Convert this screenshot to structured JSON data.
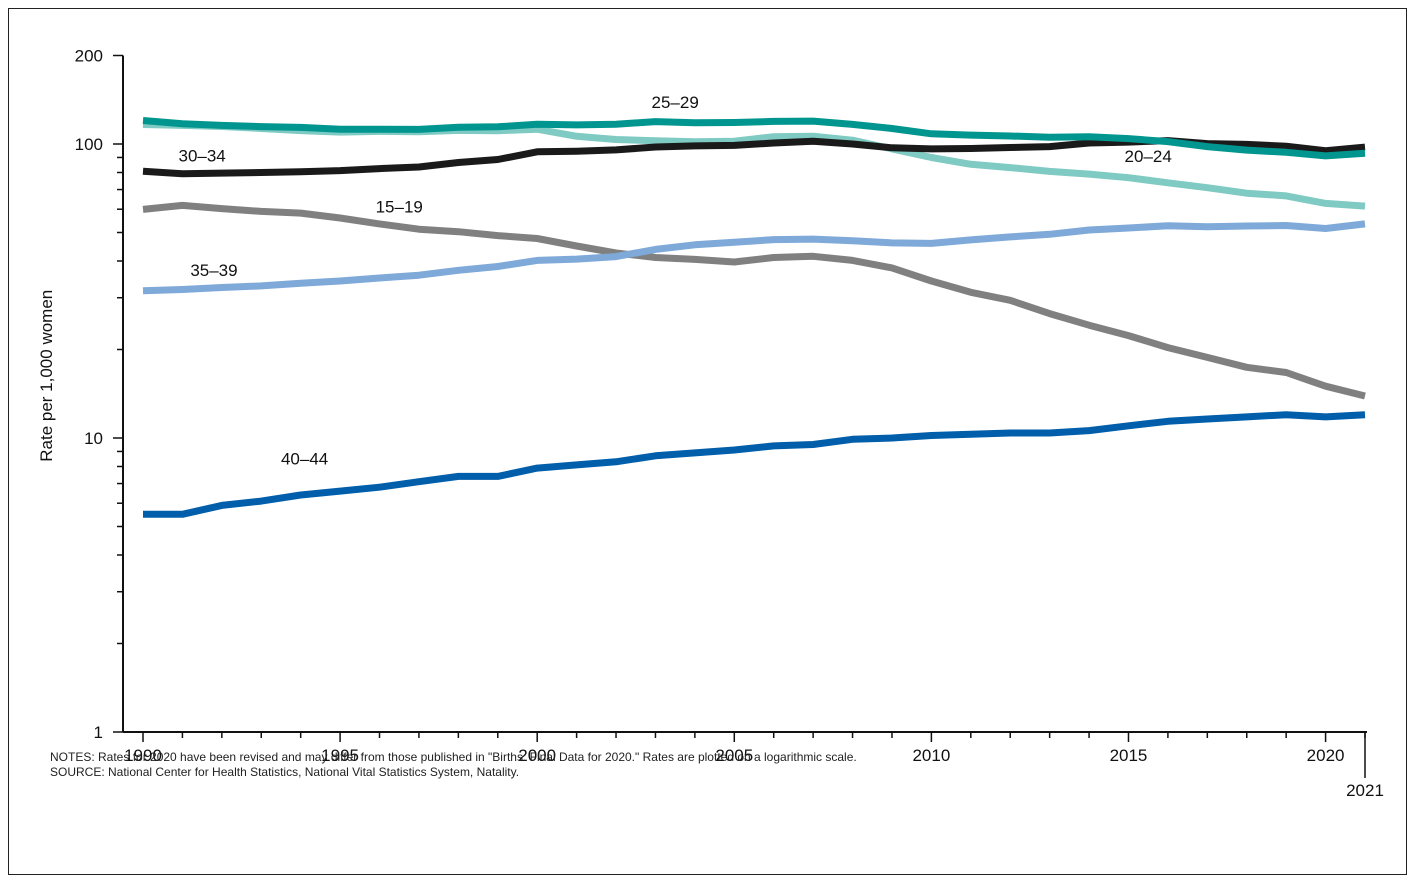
{
  "chart_data": {
    "type": "line",
    "y_scale": "log",
    "ylabel": "Rate per 1,000 women",
    "xlabel": "",
    "ylim": [
      1,
      200
    ],
    "xlim": [
      1990,
      2021
    ],
    "y_ticks": [
      1,
      10,
      100,
      200
    ],
    "x_ticks": [
      1990,
      1995,
      2000,
      2005,
      2010,
      2015,
      2020
    ],
    "x_tick_labels": [
      "1990",
      "1995",
      "2000",
      "2005",
      "2010",
      "2015",
      "2020"
    ],
    "x_extra_tick": {
      "value": 2021,
      "label": "2021"
    },
    "grid": false,
    "x": [
      1990,
      1991,
      1992,
      1993,
      1994,
      1995,
      1996,
      1997,
      1998,
      1999,
      2000,
      2001,
      2002,
      2003,
      2004,
      2005,
      2006,
      2007,
      2008,
      2009,
      2010,
      2011,
      2012,
      2013,
      2014,
      2015,
      2016,
      2017,
      2018,
      2019,
      2020,
      2021
    ],
    "series": [
      {
        "name": "15–19",
        "color": "#808080",
        "values": [
          59.9,
          61.8,
          60.3,
          59.0,
          58.2,
          56.0,
          53.5,
          51.3,
          50.3,
          48.8,
          47.7,
          45.0,
          42.6,
          41.1,
          40.5,
          39.7,
          41.1,
          41.5,
          40.2,
          37.9,
          34.2,
          31.3,
          29.4,
          26.5,
          24.2,
          22.3,
          20.3,
          18.8,
          17.4,
          16.7,
          15.0,
          13.9
        ]
      },
      {
        "name": "20–24",
        "color": "#7fcac3",
        "values": [
          116.5,
          115.7,
          114.7,
          112.9,
          111.1,
          109.8,
          110.4,
          110.1,
          111.2,
          111.0,
          112.3,
          106.2,
          103.6,
          102.6,
          101.7,
          102.2,
          105.9,
          106.3,
          103.0,
          96.2,
          90.0,
          85.3,
          83.1,
          80.7,
          79.0,
          76.8,
          73.8,
          71.0,
          68.0,
          66.6,
          62.8,
          61.5
        ]
      },
      {
        "name": "25–29",
        "color": "#00968f",
        "values": [
          120.2,
          117.2,
          115.7,
          114.6,
          113.9,
          112.2,
          112.2,
          112.1,
          114.0,
          114.4,
          116.7,
          116.1,
          116.8,
          119.2,
          118.1,
          118.3,
          119.4,
          119.6,
          116.6,
          112.9,
          108.3,
          107.2,
          106.5,
          105.5,
          105.8,
          104.3,
          101.9,
          98.0,
          95.3,
          93.7,
          91.1,
          93.0
        ]
      },
      {
        "name": "30–34",
        "color": "#1a1a1a",
        "values": [
          80.8,
          79.2,
          79.6,
          80.0,
          80.5,
          81.2,
          82.5,
          83.5,
          86.5,
          88.6,
          94.1,
          94.5,
          95.5,
          97.7,
          98.5,
          98.9,
          100.8,
          102.2,
          100.0,
          97.1,
          96.2,
          96.5,
          97.3,
          98.0,
          100.8,
          101.5,
          102.7,
          100.3,
          99.7,
          98.3,
          94.9,
          97.6
        ]
      },
      {
        "name": "35–39",
        "color": "#7ea9d8",
        "values": [
          31.7,
          32.0,
          32.5,
          32.9,
          33.6,
          34.2,
          35.0,
          35.8,
          37.2,
          38.3,
          40.2,
          40.6,
          41.4,
          43.8,
          45.4,
          46.3,
          47.3,
          47.5,
          46.9,
          46.1,
          45.9,
          47.2,
          48.3,
          49.3,
          51.0,
          51.8,
          52.7,
          52.3,
          52.6,
          52.8,
          51.6,
          53.5
        ]
      },
      {
        "name": "40–44",
        "color": "#005eaa",
        "values": [
          5.5,
          5.5,
          5.9,
          6.1,
          6.4,
          6.6,
          6.8,
          7.1,
          7.4,
          7.4,
          7.9,
          8.1,
          8.3,
          8.7,
          8.9,
          9.1,
          9.4,
          9.5,
          9.9,
          10.0,
          10.2,
          10.3,
          10.4,
          10.4,
          10.6,
          11.0,
          11.4,
          11.6,
          11.8,
          12.0,
          11.8,
          12.0
        ]
      }
    ],
    "annotations": [
      {
        "series": "25–29",
        "text": "25–29"
      },
      {
        "series": "30–34",
        "text": "30–34"
      },
      {
        "series": "15–19",
        "text": "15–19"
      },
      {
        "series": "20–24",
        "text": "20–24"
      },
      {
        "series": "35–39",
        "text": "35–39"
      },
      {
        "series": "40–44",
        "text": "40–44"
      }
    ]
  },
  "notes": {
    "line1": "NOTES: Rates for 2020 have been revised and may differ from those published in \"Births: Final Data for 2020.\" Rates are plotted on a logarithmic scale.",
    "line2": "SOURCE: National Center for Health Statistics, National Vital Statistics System, Natality."
  }
}
